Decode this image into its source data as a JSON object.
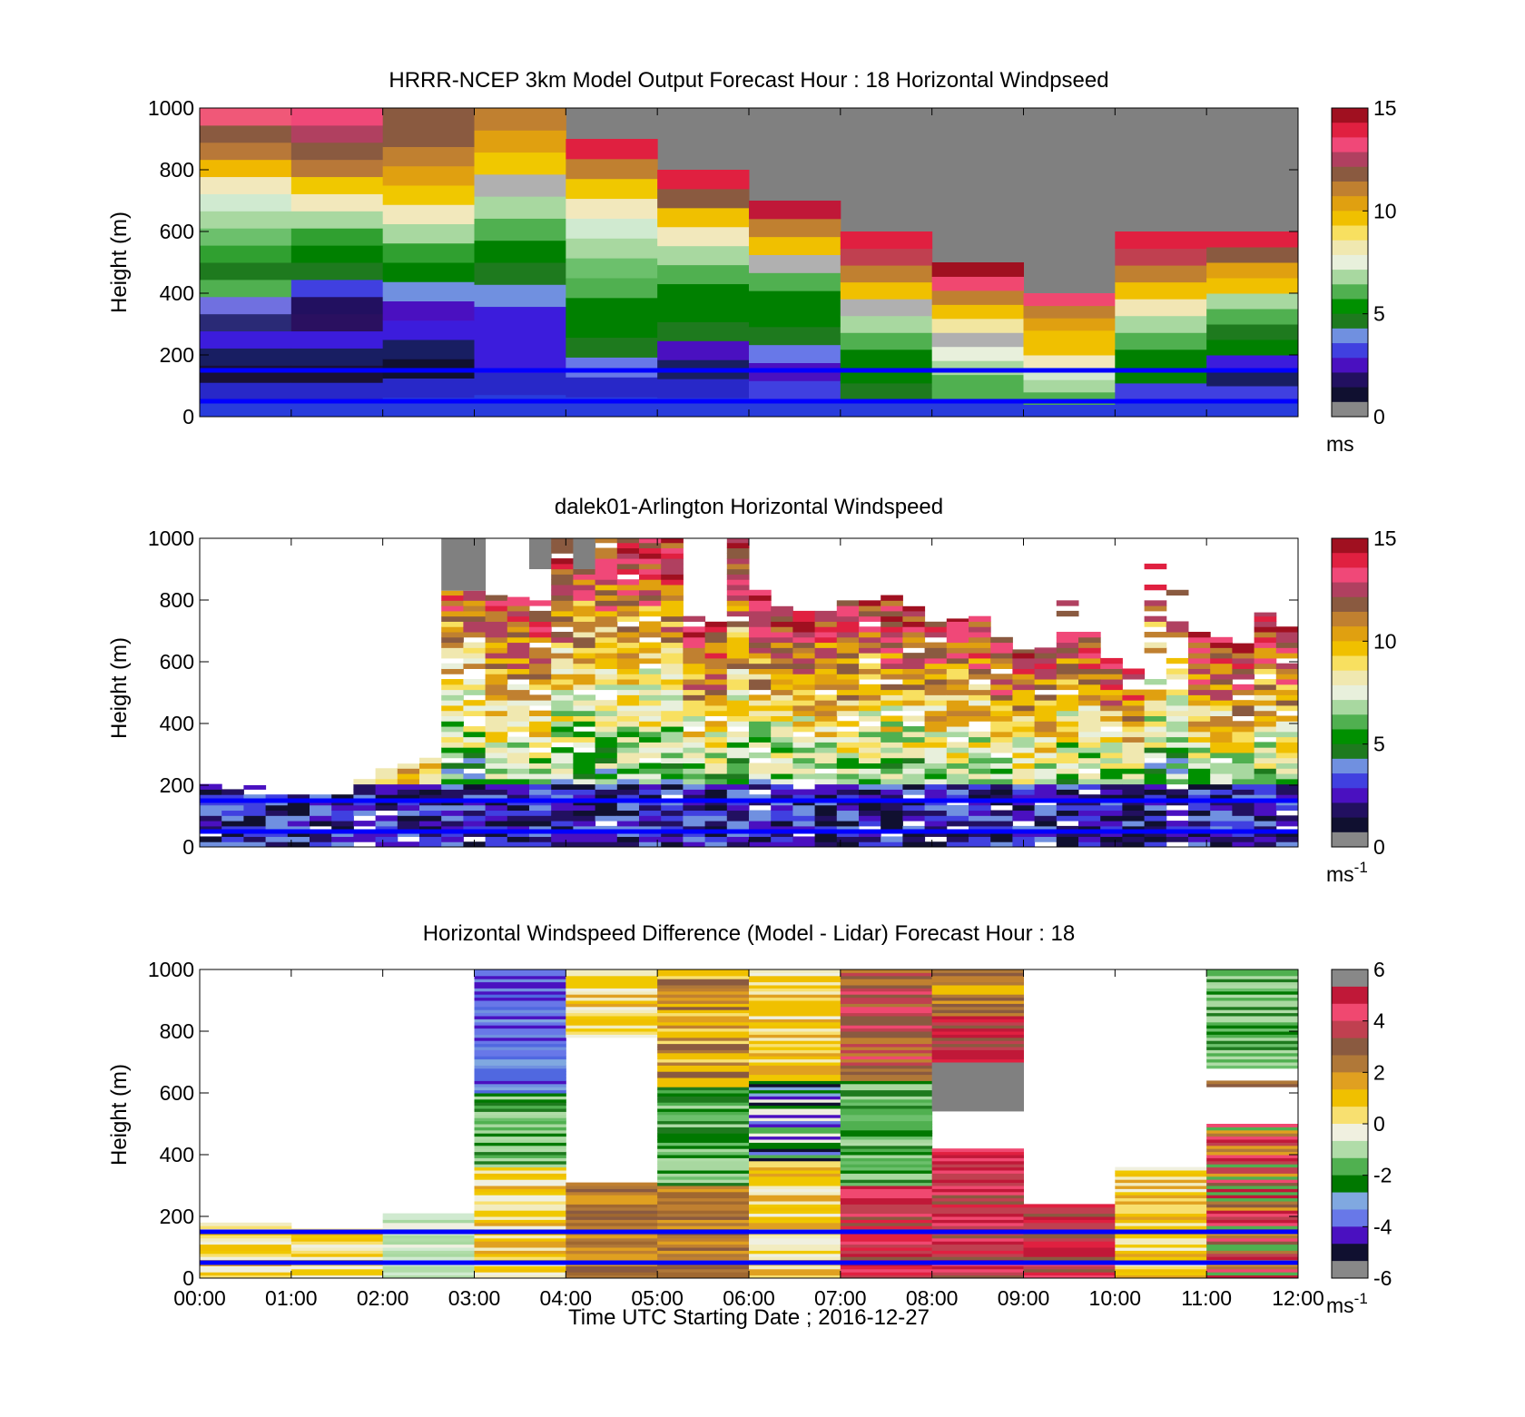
{
  "figure": {
    "x_label": "Time UTC  Starting Date ; 2016-12-27"
  },
  "colormaps": {
    "speed": [
      "#888888",
      "#101030",
      "#221060",
      "#4a10c0",
      "#4040e0",
      "#7090e0",
      "#1e7a1e",
      "#009000",
      "#50b050",
      "#a8d8a0",
      "#e8f0dc",
      "#f0e8b0",
      "#f8e060",
      "#f0c000",
      "#e0a010",
      "#c08030",
      "#8a5a40",
      "#b04060",
      "#f04878",
      "#e02040",
      "#a01020"
    ],
    "diff": [
      "#888888",
      "#101030",
      "#4a10c0",
      "#6878e8",
      "#80a8e0",
      "#007800",
      "#50b050",
      "#b0dca8",
      "#f0f0e0",
      "#f8e070",
      "#f0c000",
      "#e0a020",
      "#b07838",
      "#8a5a40",
      "#c04050",
      "#f04870",
      "#c01838",
      "#888888"
    ]
  },
  "chart_data": [
    {
      "type": "heatmap",
      "title": "HRRR-NCEP 3km Model Output   Forecast Hour : 18 Horizontal Windpseed",
      "ylabel": "Height (m)",
      "ylim": [
        0,
        1000
      ],
      "y_ticks": [
        "0",
        "200",
        "400",
        "600",
        "800",
        "1000"
      ],
      "x_ticks": [
        "",
        "",
        "",
        "",
        "",
        "",
        "",
        "",
        "",
        "",
        "",
        "",
        ""
      ],
      "xlim": [
        0,
        12
      ],
      "colorbar": {
        "range": [
          0,
          15
        ],
        "ticks": [
          "0",
          "5",
          "10",
          "15"
        ],
        "unit": "ms",
        "unit_sup": "",
        "cmap": "speed"
      },
      "reference_lines_m": [
        150,
        50
      ],
      "model_columns": [
        {
          "t0": 0,
          "t1": 1,
          "top": 1000,
          "colors": [
            "#283cdc",
            "#2828c8",
            "#181038",
            "#181e62",
            "#3c1cdc",
            "#2a2a76",
            "#7070e0",
            "#50b050",
            "#1e7a1e",
            "#30a030",
            "#6cc06c",
            "#a8d8a0",
            "#d0ead0",
            "#f2e8bc",
            "#f0b800",
            "#b87838",
            "#8a5a40",
            "#f05878"
          ]
        },
        {
          "t0": 1,
          "t1": 2,
          "top": 1000,
          "colors": [
            "#283cdc",
            "#2828c8",
            "#181038",
            "#181e62",
            "#3c1cdc",
            "#2a1060",
            "#221060",
            "#4040e0",
            "#1e7a1e",
            "#008000",
            "#30a030",
            "#a8d8a0",
            "#f2e8bc",
            "#f0c800",
            "#b87838",
            "#8a5a40",
            "#b04060",
            "#f04878"
          ]
        },
        {
          "t0": 2,
          "t1": 3,
          "top": 1000,
          "colors": [
            "#283cdc",
            "#2828c8",
            "#101030",
            "#181e62",
            "#3c1cdc",
            "#4a10c0",
            "#7090e0",
            "#008000",
            "#30a030",
            "#a8d8a0",
            "#f2e8bc",
            "#f0c800",
            "#e0a010",
            "#c08030",
            "#8a5a40",
            "#8a5a40"
          ]
        },
        {
          "t0": 3,
          "t1": 4,
          "top": 1000,
          "colors": [
            "#283cdc",
            "#2828c8",
            "#3c1cdc",
            "#3c1cdc",
            "#3c1cdc",
            "#7090e0",
            "#1e7a1e",
            "#008000",
            "#50b050",
            "#a8d8a0",
            "#b0b0b0",
            "#f0c800",
            "#e0a010",
            "#c08030"
          ]
        },
        {
          "t0": 4,
          "t1": 5,
          "top": 900,
          "colors": [
            "#283cdc",
            "#2828c8",
            "#6878e8",
            "#1e7a1e",
            "#008000",
            "#008000",
            "#50b050",
            "#6cc06c",
            "#a8d8a0",
            "#d0ead0",
            "#f2e8bc",
            "#f0c800",
            "#c08030",
            "#e02040"
          ]
        },
        {
          "t0": 5,
          "t1": 6,
          "top": 800,
          "colors": [
            "#283cdc",
            "#2828c8",
            "#181e62",
            "#4a10c0",
            "#1e7a1e",
            "#008000",
            "#008000",
            "#50b050",
            "#a8d8a0",
            "#f2e8bc",
            "#f0c000",
            "#8a5a40",
            "#e02040"
          ]
        },
        {
          "t0": 6,
          "t1": 7,
          "top": 700,
          "colors": [
            "#283cdc",
            "#4040e0",
            "#4a10c0",
            "#6878e8",
            "#1e7a1e",
            "#008000",
            "#008000",
            "#50b050",
            "#b0b0b0",
            "#f0c000",
            "#c08030",
            "#c01838"
          ]
        },
        {
          "t0": 7,
          "t1": 8,
          "top": 600,
          "colors": [
            "#283cdc",
            "#1e7a1e",
            "#008000",
            "#008000",
            "#50b050",
            "#a8d8a0",
            "#b0b0b0",
            "#f0c000",
            "#c08030",
            "#c04050",
            "#e02040"
          ]
        },
        {
          "t0": 8,
          "t1": 9,
          "top": 500,
          "colors": [
            "#283cdc",
            "#50b050",
            "#50b050",
            "#a8d8a0",
            "#e8f0dc",
            "#b0b0b0",
            "#f2e6a0",
            "#f0c000",
            "#c08030",
            "#f04870",
            "#a01020"
          ]
        },
        {
          "t0": 9,
          "t1": 10,
          "top": 400,
          "colors": [
            "#283cdc",
            "#50b050",
            "#a8d8a0",
            "#d0ead0",
            "#f2e8bc",
            "#f0c000",
            "#f0c000",
            "#e0a010",
            "#c08030",
            "#f04870"
          ]
        },
        {
          "t0": 10,
          "t1": 11,
          "top": 600,
          "colors": [
            "#283cdc",
            "#4040e0",
            "#008000",
            "#008000",
            "#50b050",
            "#a8d8a0",
            "#f2e6b4",
            "#f0c000",
            "#c08030",
            "#c04050",
            "#e02040"
          ]
        },
        {
          "t0": 11,
          "t1": 12,
          "top": 600,
          "colors": [
            "#283cdc",
            "#4040e0",
            "#181e62",
            "#3c1cdc",
            "#008000",
            "#1e7a1e",
            "#50b050",
            "#a8d8a0",
            "#f0c000",
            "#e0a010",
            "#8a5a40",
            "#e02040"
          ]
        }
      ]
    },
    {
      "type": "heatmap",
      "title": "dalek01-Arlington  Horizontal Windspeed",
      "ylabel": "Height (m)",
      "ylim": [
        0,
        1000
      ],
      "y_ticks": [
        "0",
        "200",
        "400",
        "600",
        "800",
        "1000"
      ],
      "x_ticks": [
        "",
        "",
        "",
        "",
        "",
        "",
        "",
        "",
        "",
        "",
        "",
        "",
        ""
      ],
      "xlim": [
        0,
        12
      ],
      "colorbar": {
        "range": [
          0,
          15
        ],
        "ticks": [
          "0",
          "5",
          "10",
          "15"
        ],
        "unit": "ms",
        "unit_sup": "-1",
        "cmap": "speed"
      },
      "reference_lines_m": [
        150,
        50
      ],
      "lidar_columns_top_m": [
        210,
        210,
        200,
        175,
        170,
        170,
        170,
        220,
        260,
        270,
        290,
        1000,
        1000,
        820,
        810,
        800,
        1000,
        1000,
        1000,
        1000,
        1000,
        1000,
        750,
        730,
        1000,
        840,
        780,
        770,
        770,
        800,
        820,
        820,
        780,
        730,
        740,
        750,
        680,
        640,
        650,
        800,
        700,
        620,
        580,
        1000,
        1000,
        700,
        680,
        660,
        760,
        720
      ],
      "lidar_columns_gray_m": [
        0,
        0,
        0,
        0,
        0,
        0,
        0,
        0,
        0,
        0,
        0,
        830,
        830,
        0,
        0,
        900,
        0,
        900,
        0,
        0,
        0,
        0,
        0,
        0,
        0,
        0,
        0,
        0,
        0,
        0,
        0,
        0,
        0,
        0,
        0,
        0,
        1000,
        0,
        0,
        0,
        1000,
        0,
        0,
        1000,
        1000,
        0,
        0,
        0,
        0,
        0
      ],
      "lidar_columns_gap_from_m": [
        0,
        0,
        0,
        0,
        0,
        0,
        0,
        0,
        0,
        0,
        0,
        0,
        0,
        0,
        0,
        0,
        0,
        0,
        0,
        0,
        0,
        0,
        0,
        0,
        0,
        0,
        0,
        0,
        0,
        0,
        0,
        0,
        0,
        0,
        0,
        0,
        0,
        0,
        700,
        700,
        700,
        700,
        700,
        500,
        500,
        0,
        0,
        0,
        0,
        0
      ]
    },
    {
      "type": "heatmap",
      "title": "Horizontal Windspeed Difference (Model - Lidar) Forecast Hour : 18",
      "ylabel": "Height (m)",
      "ylim": [
        0,
        1000
      ],
      "y_ticks": [
        "0",
        "200",
        "400",
        "600",
        "800",
        "1000"
      ],
      "x_ticks": [
        "00:00",
        "01:00",
        "02:00",
        "03:00",
        "04:00",
        "05:00",
        "06:00",
        "07:00",
        "08:00",
        "09:00",
        "10:00",
        "11:00",
        "12:00"
      ],
      "xlim": [
        0,
        12
      ],
      "colorbar": {
        "range": [
          -6,
          6
        ],
        "ticks": [
          "-6",
          "-4",
          "-2",
          "0",
          "2",
          "4",
          "6"
        ],
        "unit": "ms",
        "unit_sup": "-1",
        "cmap": "diff"
      },
      "reference_lines_m": [
        150,
        50
      ],
      "diff_columns": [
        {
          "t0": 0,
          "t1": 1,
          "segments": [
            [
              0,
              180,
              "yellow"
            ]
          ]
        },
        {
          "t0": 1,
          "t1": 2,
          "segments": [
            [
              0,
              160,
              "yellow"
            ]
          ]
        },
        {
          "t0": 2,
          "t1": 3,
          "segments": [
            [
              0,
              210,
              "pale"
            ]
          ]
        },
        {
          "t0": 3,
          "t1": 4,
          "segments": [
            [
              0,
              360,
              "yellow"
            ],
            [
              360,
              600,
              "green"
            ],
            [
              600,
              1000,
              "blue"
            ]
          ]
        },
        {
          "t0": 4,
          "t1": 5,
          "segments": [
            [
              0,
              310,
              "brown"
            ],
            [
              780,
              1000,
              "yellow"
            ]
          ]
        },
        {
          "t0": 5,
          "t1": 6,
          "segments": [
            [
              0,
              300,
              "brown"
            ],
            [
              300,
              620,
              "green"
            ],
            [
              620,
              1000,
              "brownyellow"
            ]
          ]
        },
        {
          "t0": 6,
          "t1": 7,
          "segments": [
            [
              0,
              380,
              "yellow"
            ],
            [
              380,
              640,
              "mixed"
            ],
            [
              640,
              1000,
              "yellow"
            ]
          ]
        },
        {
          "t0": 7,
          "t1": 8,
          "segments": [
            [
              0,
              300,
              "red"
            ],
            [
              300,
              640,
              "green"
            ],
            [
              640,
              1000,
              "brownred"
            ]
          ]
        },
        {
          "t0": 8,
          "t1": 9,
          "segments": [
            [
              0,
              420,
              "red"
            ],
            [
              540,
              700,
              "gray"
            ],
            [
              700,
              850,
              "red"
            ],
            [
              850,
              1000,
              "brownyellow"
            ]
          ]
        },
        {
          "t0": 9,
          "t1": 10,
          "segments": [
            [
              0,
              240,
              "red"
            ]
          ]
        },
        {
          "t0": 10,
          "t1": 11,
          "segments": [
            [
              0,
              360,
              "yellow"
            ]
          ]
        },
        {
          "t0": 11,
          "t1": 12,
          "segments": [
            [
              0,
              500,
              "redbrown"
            ],
            [
              620,
              640,
              "brown"
            ],
            [
              680,
              1000,
              "green"
            ]
          ]
        }
      ]
    }
  ]
}
